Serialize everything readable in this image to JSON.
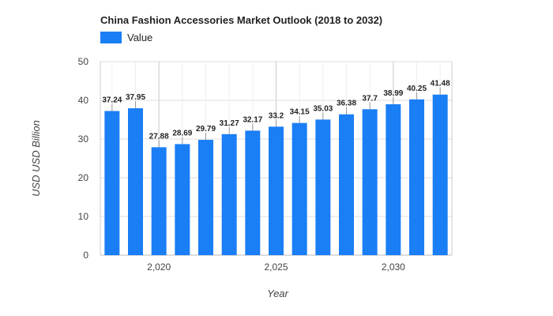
{
  "chart_data": {
    "type": "bar",
    "title": "China Fashion Accessories Market Outlook (2018 to 2032)",
    "xlabel": "Year",
    "ylabel": "USD USD Billion",
    "legend": {
      "position": "top-left",
      "entries": [
        "Value"
      ]
    },
    "x": [
      2018,
      2019,
      2020,
      2021,
      2022,
      2023,
      2024,
      2025,
      2026,
      2027,
      2028,
      2029,
      2030,
      2031,
      2032
    ],
    "series": [
      {
        "name": "Value",
        "color": "#1a7ef5",
        "values": [
          37.24,
          37.95,
          27.88,
          28.69,
          29.79,
          31.27,
          32.17,
          33.2,
          34.15,
          35.03,
          36.38,
          37.7,
          38.99,
          40.25,
          41.48
        ],
        "labels": [
          "37.24",
          "37.95",
          "27.88",
          "28.69",
          "29.79",
          "31.27",
          "32.17",
          "33.2",
          "34.15",
          "35.03",
          "36.38",
          "37.7",
          "38.99",
          "40.25",
          "41.48"
        ]
      }
    ],
    "ylim": [
      0,
      50
    ],
    "xlim": [
      2017.5,
      2032.5
    ],
    "y_ticks": [
      0,
      10,
      20,
      30,
      40,
      50
    ],
    "x_ticks": [
      2020,
      2025,
      2030
    ],
    "x_tick_labels": [
      "2,020",
      "2,025",
      "2,030"
    ],
    "grid": true
  }
}
